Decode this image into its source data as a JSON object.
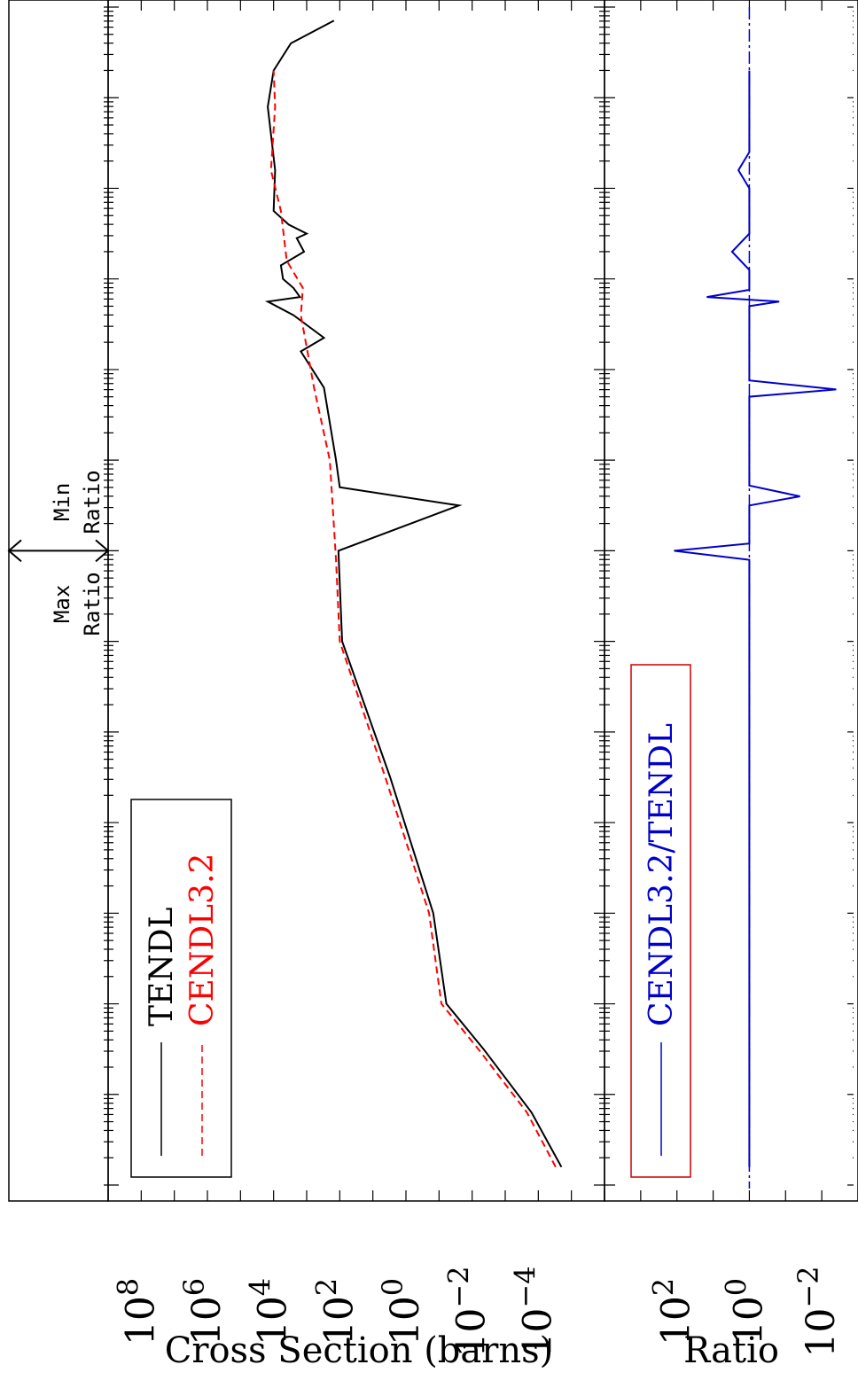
{
  "chart_data": [
    {
      "type": "line",
      "orientation": "rotated 90 degrees clockwise",
      "ylabel": "Cross Section (barns)",
      "yscale": "log",
      "ylim": [
        1e-06,
        1000000000.0
      ],
      "y_tick_labels": [
        "10²",
        "10⁻²",
        "10⁻⁴"
      ],
      "y_tick_label_items": [
        {
          "base": "10",
          "exp": "8",
          "value": 100000000.0
        },
        {
          "base": "10",
          "exp": "6",
          "value": 1000000.0
        },
        {
          "base": "10",
          "exp": "4",
          "value": 10000.0
        },
        {
          "base": "10",
          "exp": "2",
          "value": 100.0
        },
        {
          "base": "10",
          "exp": "0",
          "value": 1
        },
        {
          "base": "10",
          "exp": "-2",
          "value": 0.01
        },
        {
          "base": "10",
          "exp": "-4",
          "value": 0.0001
        }
      ],
      "xscale": "log",
      "x_decades": 13,
      "legend": {
        "position": "top-left",
        "entries": [
          "TENDL",
          "CENDL3.2"
        ]
      },
      "annotation": {
        "left": "Max Ratio",
        "right": "Min Ratio"
      },
      "series": [
        {
          "name": "TENDL",
          "color": "#000000",
          "dash": "solid",
          "points": [
            [
              0.2,
              2e-05
            ],
            [
              0.8,
              0.00016
            ],
            [
              1.5,
              0.0045
            ],
            [
              2.0,
              0.06
            ],
            [
              3.0,
              0.15
            ],
            [
              4.5,
              3.0
            ],
            [
              6.0,
              85.0
            ],
            [
              7.0,
              110.0
            ],
            [
              7.5,
              0.025
            ],
            [
              7.7,
              100.0
            ],
            [
              8.0,
              130.0
            ],
            [
              8.8,
              300.0
            ],
            [
              9.2,
              1500.0
            ],
            [
              9.35,
              300.0
            ],
            [
              9.6,
              2500.0
            ],
            [
              9.75,
              15000.0
            ],
            [
              9.8,
              1600.0
            ],
            [
              9.9,
              2500.0
            ],
            [
              10.0,
              5200.0
            ],
            [
              10.15,
              6000.0
            ],
            [
              10.3,
              1200.0
            ],
            [
              10.45,
              2000.0
            ],
            [
              10.5,
              1000.0
            ],
            [
              10.6,
              3500.0
            ],
            [
              10.75,
              10000.0
            ],
            [
              11.2,
              9000.0
            ],
            [
              11.9,
              15000.0
            ],
            [
              12.3,
              10000.0
            ],
            [
              12.6,
              3000.0
            ],
            [
              12.85,
              150.0
            ]
          ]
        },
        {
          "name": "CENDL3.2",
          "color": "#ff0000",
          "dash": "dashed",
          "points": [
            [
              0.2,
              3e-05
            ],
            [
              0.8,
              0.00022
            ],
            [
              1.5,
              0.0065
            ],
            [
              2.0,
              0.085
            ],
            [
              3.0,
              0.2
            ],
            [
              4.5,
              4.2
            ],
            [
              6.0,
              100.0
            ],
            [
              6.9,
              130.0
            ],
            [
              8.0,
              200.0
            ],
            [
              8.8,
              600.0
            ],
            [
              9.6,
              1500.0
            ],
            [
              9.9,
              1300.0
            ],
            [
              10.2,
              4000.0
            ],
            [
              10.75,
              6000.0
            ],
            [
              11.2,
              12000.0
            ],
            [
              11.9,
              9000.0
            ],
            [
              12.3,
              10000.0
            ]
          ]
        }
      ]
    },
    {
      "type": "line",
      "orientation": "rotated 90 degrees clockwise",
      "ylabel": "Ratio",
      "yscale": "log",
      "ylim": [
        0.001,
        10000.0
      ],
      "y_tick_labels": [
        "10²",
        "10⁻²"
      ],
      "y_tick_label_items": [
        {
          "base": "10",
          "exp": "2",
          "value": 100.0
        },
        {
          "base": "10",
          "exp": "0",
          "value": 1
        },
        {
          "base": "10",
          "exp": "-2",
          "value": 0.01
        }
      ],
      "xscale": "log",
      "x_decades": 13,
      "legend": {
        "position": "top-left",
        "entries": [
          "CENDL3.2/TENDL"
        ]
      },
      "series": [
        {
          "name": "CENDL3.2/TENDL",
          "color": "#0000cc",
          "dash": "solid",
          "points": [
            [
              0.2,
              1.0
            ],
            [
              6.9,
              1.0
            ],
            [
              7.0,
              120.0
            ],
            [
              7.08,
              1.0
            ],
            [
              7.5,
              1.0
            ],
            [
              7.6,
              0.04
            ],
            [
              7.72,
              1.0
            ],
            [
              8.7,
              1.0
            ],
            [
              8.78,
              0.004
            ],
            [
              8.88,
              1.0
            ],
            [
              9.7,
              1.0
            ],
            [
              9.75,
              0.15
            ],
            [
              9.8,
              15.0
            ],
            [
              9.88,
              1.0
            ],
            [
              10.1,
              1.0
            ],
            [
              10.3,
              3.0
            ],
            [
              10.5,
              1.0
            ],
            [
              11.0,
              1.0
            ],
            [
              11.2,
              2.0
            ],
            [
              11.4,
              1.0
            ],
            [
              12.3,
              1.0
            ]
          ]
        }
      ]
    }
  ]
}
